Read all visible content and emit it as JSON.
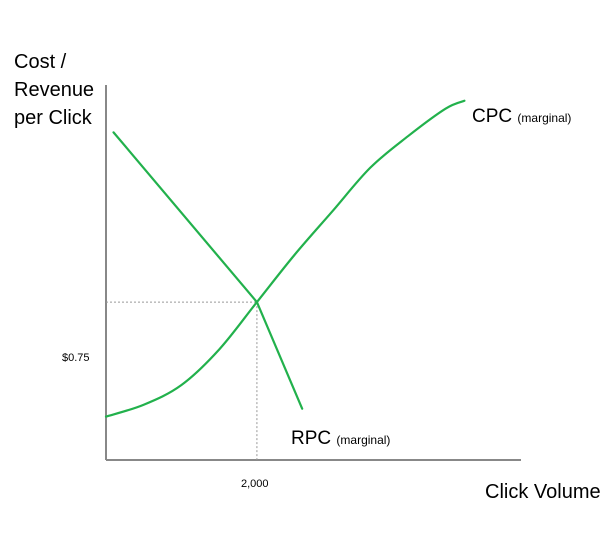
{
  "chart_data": {
    "type": "line",
    "ylabel": "Cost /\nRevenue\nper Click",
    "xlabel": "Click Volume",
    "x_tick_labels": [
      "2,000"
    ],
    "y_tick_labels": [
      "$0.75"
    ],
    "equilibrium": {
      "x": 2000,
      "y": 0.75
    },
    "xlim": [
      0,
      5500
    ],
    "ylim": [
      0.35,
      1.3
    ],
    "series": [
      {
        "name": "CPC",
        "name_suffix": "(marginal)",
        "color": "#22b14c",
        "x": [
          0,
          500,
          1000,
          1500,
          2000,
          2500,
          3000,
          3500,
          4000,
          4500,
          4750
        ],
        "y": [
          0.46,
          0.49,
          0.54,
          0.63,
          0.75,
          0.87,
          0.98,
          1.09,
          1.17,
          1.24,
          1.26
        ]
      },
      {
        "name": "RPC",
        "name_suffix": "(marginal)",
        "color": "#22b14c",
        "x": [
          100,
          2000,
          2600
        ],
        "y": [
          1.18,
          0.75,
          0.48
        ]
      }
    ],
    "grid": false,
    "axis_color": "#888888",
    "guide_color": "#999999"
  }
}
